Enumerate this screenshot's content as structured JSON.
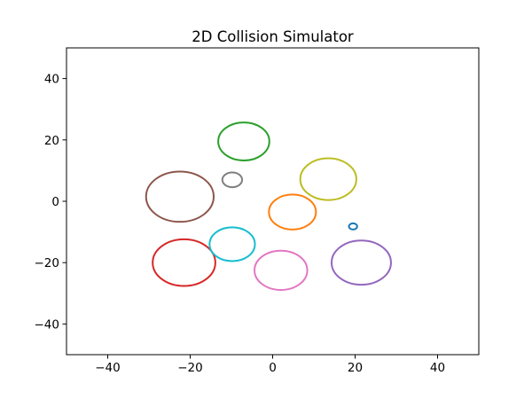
{
  "chart_data": {
    "type": "scatter",
    "title": "2D Collision Simulator",
    "xlabel": "",
    "ylabel": "",
    "xlim": [
      -50,
      50
    ],
    "ylim": [
      -50,
      50
    ],
    "xticks": [
      -40,
      -20,
      0,
      20,
      40
    ],
    "yticks": [
      -40,
      -20,
      0,
      20,
      40
    ],
    "x_tick_labels": [
      "−40",
      "−20",
      "0",
      "20",
      "40"
    ],
    "y_tick_labels": [
      "−40",
      "−20",
      "0",
      "20",
      "40"
    ],
    "grid": false,
    "legend": "none",
    "circles": [
      {
        "cx": -22.5,
        "cy": 1.5,
        "r": 8.2,
        "color": "#8c564b"
      },
      {
        "cx": -21.5,
        "cy": -20.0,
        "r": 7.6,
        "color": "#d62728"
      },
      {
        "cx": -7.0,
        "cy": 19.5,
        "r": 6.2,
        "color": "#2ca02c"
      },
      {
        "cx": -9.8,
        "cy": 7.0,
        "r": 2.4,
        "color": "#7f7f7f"
      },
      {
        "cx": -9.8,
        "cy": -14.0,
        "r": 5.5,
        "color": "#17becf"
      },
      {
        "cx": 2.0,
        "cy": -22.5,
        "r": 6.4,
        "color": "#e377c2"
      },
      {
        "cx": 4.8,
        "cy": -3.5,
        "r": 5.7,
        "color": "#ff7f0e"
      },
      {
        "cx": 13.5,
        "cy": 7.2,
        "r": 6.8,
        "color": "#bcbd22"
      },
      {
        "cx": 19.5,
        "cy": -8.2,
        "r": 1.0,
        "color": "#1f77b4"
      },
      {
        "cx": 21.5,
        "cy": -20.0,
        "r": 7.2,
        "color": "#9467bd"
      }
    ]
  }
}
